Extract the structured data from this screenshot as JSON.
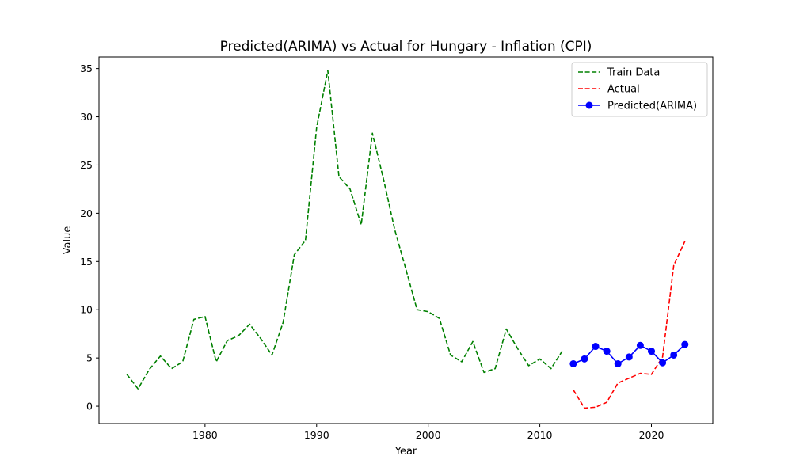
{
  "chart_data": {
    "type": "line",
    "title": "Predicted(ARIMA) vs Actual for Hungary - Inflation (CPI)",
    "xlabel": "Year",
    "ylabel": "Value",
    "xlim": [
      1970.5,
      2025.5
    ],
    "ylim": [
      -1.8,
      36.2
    ],
    "xticks": [
      1980,
      1990,
      2000,
      2010,
      2020
    ],
    "yticks": [
      0,
      5,
      10,
      15,
      20,
      25,
      30,
      35
    ],
    "grid": false,
    "legend_position": "top-right",
    "series": [
      {
        "name": "Train Data",
        "color": "#008000",
        "style": "dashed",
        "marker": "none",
        "x": [
          1973,
          1974,
          1975,
          1976,
          1977,
          1978,
          1979,
          1980,
          1981,
          1982,
          1983,
          1984,
          1985,
          1986,
          1987,
          1988,
          1989,
          1990,
          1991,
          1992,
          1993,
          1994,
          1995,
          1996,
          1997,
          1998,
          1999,
          2000,
          2001,
          2002,
          2003,
          2004,
          2005,
          2006,
          2007,
          2008,
          2009,
          2010,
          2011,
          2012
        ],
        "values": [
          3.3,
          1.8,
          3.8,
          5.2,
          3.9,
          4.6,
          9.0,
          9.3,
          4.6,
          6.8,
          7.3,
          8.5,
          7.0,
          5.3,
          8.7,
          15.7,
          17.2,
          28.9,
          34.8,
          23.8,
          22.5,
          18.8,
          28.3,
          23.5,
          18.3,
          14.2,
          10.0,
          9.8,
          9.1,
          5.3,
          4.6,
          6.7,
          3.5,
          3.9,
          8.0,
          6.0,
          4.2,
          4.9,
          3.9,
          5.7
        ]
      },
      {
        "name": "Actual",
        "color": "#ff0000",
        "style": "dashed",
        "marker": "none",
        "x": [
          2013,
          2014,
          2015,
          2016,
          2017,
          2018,
          2019,
          2020,
          2021,
          2022,
          2023
        ],
        "values": [
          1.7,
          -0.2,
          -0.1,
          0.4,
          2.4,
          2.9,
          3.4,
          3.3,
          5.1,
          14.6,
          17.1
        ]
      },
      {
        "name": "Predicted(ARIMA)",
        "color": "#0000ff",
        "style": "solid",
        "marker": "circle",
        "x": [
          2013,
          2014,
          2015,
          2016,
          2017,
          2018,
          2019,
          2020,
          2021,
          2022,
          2023
        ],
        "values": [
          4.4,
          4.9,
          6.2,
          5.7,
          4.4,
          5.1,
          6.3,
          5.7,
          4.5,
          5.3,
          6.4
        ]
      }
    ]
  }
}
